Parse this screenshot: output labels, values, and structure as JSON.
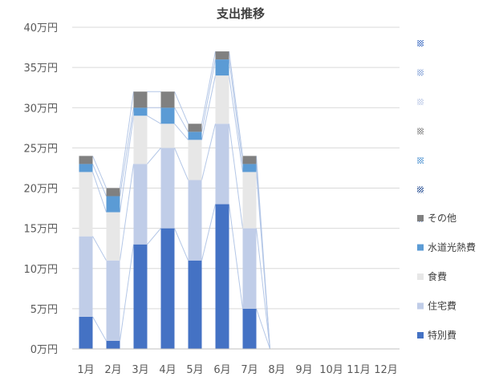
{
  "chart_data": {
    "type": "bar",
    "stacked": true,
    "title": "支出推移",
    "xlabel": "",
    "ylabel": "",
    "ylim": [
      0,
      40
    ],
    "y_ticks": [
      "0万円",
      "5万円",
      "10万円",
      "15万円",
      "20万円",
      "25万円",
      "30万円",
      "35万円",
      "40万円"
    ],
    "categories": [
      "1月",
      "2月",
      "3月",
      "4月",
      "5月",
      "6月",
      "7月",
      "8月",
      "9月",
      "10月",
      "11月",
      "12月"
    ],
    "grid": true,
    "legend_position": "right",
    "series": [
      {
        "name": "特別費",
        "color": "#4472C4",
        "values": [
          4,
          1,
          13,
          15,
          11,
          18,
          5,
          0,
          0,
          0,
          0,
          0
        ]
      },
      {
        "name": "住宅費",
        "color": "#C0CDE8",
        "values": [
          10,
          10,
          10,
          10,
          10,
          10,
          10,
          0,
          0,
          0,
          0,
          0
        ]
      },
      {
        "name": "食費",
        "color": "#E7E7E7",
        "values": [
          8,
          6,
          6,
          3,
          5,
          6,
          7,
          0,
          0,
          0,
          0,
          0
        ]
      },
      {
        "name": "水道光熱費",
        "color": "#5B9BD5",
        "values": [
          1,
          2,
          1,
          2,
          1,
          2,
          1,
          0,
          0,
          0,
          0,
          0
        ]
      },
      {
        "name": "その他",
        "color": "#808080",
        "values": [
          1,
          1,
          2,
          2,
          1,
          1,
          1,
          0,
          0,
          0,
          0,
          0
        ]
      }
    ],
    "legend_extra_markers": [
      {
        "pattern": "checker",
        "color": "#4472C4"
      },
      {
        "pattern": "checker",
        "color": "#8EA9DB"
      },
      {
        "pattern": "checker",
        "color": "#C0CDE8"
      },
      {
        "pattern": "checker",
        "color": "#808080"
      },
      {
        "pattern": "checker",
        "color": "#5B9BD5"
      },
      {
        "pattern": "hatch",
        "color": "#2F5597"
      },
      {
        "pattern": "checker",
        "color": "#8EA9DB"
      }
    ]
  }
}
